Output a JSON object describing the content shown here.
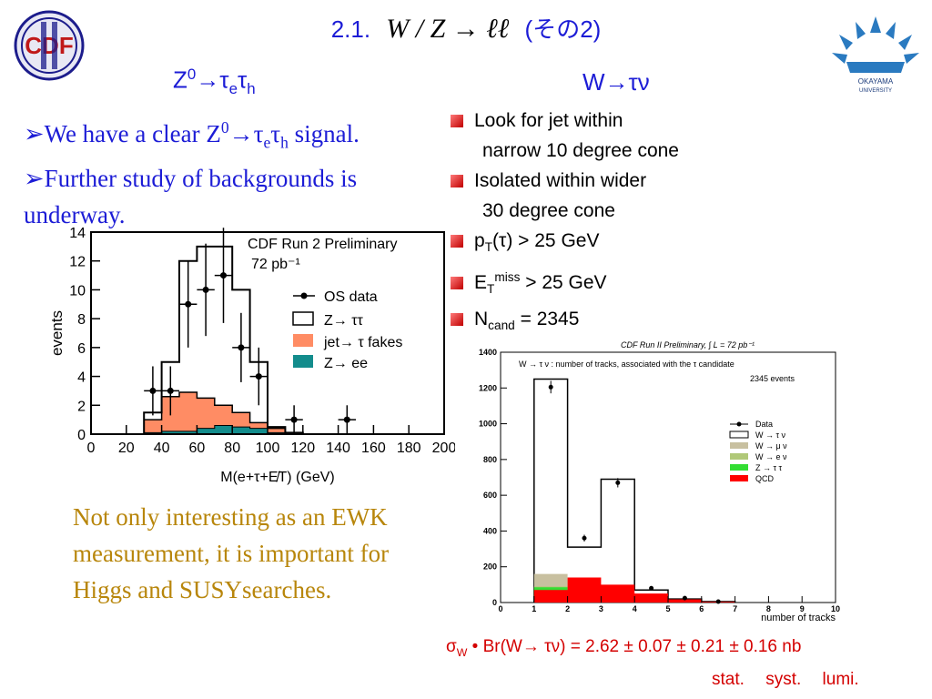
{
  "slide": {
    "title_num": "2.1.",
    "title_formula": "W / Z → ℓℓ",
    "title_suffix": "(その2)",
    "colors": {
      "title_blue": "#1c1cd6",
      "tan_text": "#b8860b",
      "bullet_red": "#c00000"
    }
  },
  "left": {
    "heading": {
      "base": "Z",
      "sup": "0",
      "arrow": "→τ",
      "sub1": "e",
      "tau": "τ",
      "sub2": "h"
    },
    "bullets": [
      {
        "pre": "We have a clear Z",
        "sup": "0",
        "mid": "→τ",
        "sub1": "e",
        "tau": "τ",
        "sub2": "h",
        "post": " signal."
      },
      {
        "text": "Further study of backgrounds is underway."
      }
    ],
    "note": "Not only interesting as an EWK measurement, it is important for Higgs and SUSYsearches."
  },
  "right": {
    "heading": "W→τν",
    "bullets": [
      {
        "line1": "Look for jet within",
        "line2": "narrow 10 degree cone"
      },
      {
        "line1": "Isolated within wider",
        "line2": "30 degree cone"
      },
      {
        "main": "p",
        "sub": "T",
        "rest": "(τ) > 25 GeV"
      },
      {
        "main": "E",
        "sub": "T",
        "sup": "miss",
        "rest": " > 25 GeV"
      },
      {
        "main": "N",
        "sub": "cand",
        "rest": " = 2345"
      }
    ],
    "result": {
      "sigma": "σ",
      "sub": "W",
      "text": " • Br(W→ τν) = 2.62 ± 0.07 ± 0.21 ± 0.16 nb",
      "labels": [
        "stat.",
        "syst.",
        "lumi."
      ]
    }
  },
  "chart_data": [
    {
      "type": "bar",
      "title": "CDF Run 2 Preliminary",
      "lumi": "72 pb⁻¹",
      "xlabel": "M(e+τ+E̸T)  (GeV)",
      "ylabel": "events",
      "xlim": [
        0,
        200
      ],
      "ylim": [
        0,
        14
      ],
      "xticks": [
        0,
        20,
        40,
        60,
        80,
        100,
        120,
        140,
        160,
        180,
        200
      ],
      "yticks": [
        0,
        2,
        4,
        6,
        8,
        10,
        12,
        14
      ],
      "bin_edges": [
        30,
        40,
        50,
        60,
        70,
        80,
        90,
        100,
        110,
        120,
        130,
        140
      ],
      "series": [
        {
          "name": "Z→ ττ",
          "style": "outline",
          "color": "#000000",
          "values": [
            1.5,
            5.0,
            12.0,
            13.0,
            13.0,
            10.0,
            5.0,
            0.5,
            0.1,
            0.0,
            0.0
          ]
        },
        {
          "name": "jet→ τ fakes",
          "style": "fill",
          "color": "#ff8c64",
          "values": [
            1.0,
            2.6,
            2.9,
            2.5,
            2.0,
            1.5,
            0.8,
            0.4,
            0.1,
            0.0,
            0.0
          ]
        },
        {
          "name": "Z→ ee",
          "style": "fill",
          "color": "#138c8c",
          "values": [
            0.1,
            0.2,
            0.2,
            0.4,
            0.6,
            0.5,
            0.4,
            0.1,
            0.0,
            0.0,
            0.0
          ]
        }
      ],
      "points": {
        "name": "OS data",
        "x": [
          35,
          45,
          55,
          65,
          75,
          85,
          95,
          115,
          145
        ],
        "y": [
          3,
          3,
          9,
          10,
          11,
          6,
          4,
          1,
          1
        ],
        "err": [
          1.7,
          1.7,
          3.0,
          3.2,
          3.3,
          2.4,
          2.0,
          1.0,
          1.0
        ]
      },
      "legend": "top-right"
    },
    {
      "type": "bar",
      "header": "CDF Run II Preliminary,   ∫ L = 72 pb⁻¹",
      "title": "W → τ ν : number of tracks, associated with the τ candidate",
      "events": "2345 events",
      "xlabel": "number of tracks",
      "xlim": [
        0,
        10
      ],
      "ylim": [
        0,
        1400
      ],
      "xticks": [
        0,
        1,
        2,
        3,
        4,
        5,
        6,
        7,
        8,
        9,
        10
      ],
      "yticks": [
        0,
        200,
        400,
        600,
        800,
        1000,
        1200,
        1400
      ],
      "bin_edges": [
        1,
        2,
        3,
        4,
        5,
        6,
        7
      ],
      "series": [
        {
          "name": "W → τ ν",
          "color": "#ffffff",
          "values": [
            1250,
            310,
            690,
            70,
            20,
            5
          ]
        },
        {
          "name": "W → μ ν",
          "color": "#c8c0a0",
          "values": [
            160,
            15,
            10,
            5,
            2,
            0
          ]
        },
        {
          "name": "W → e ν",
          "color": "#b0c878",
          "values": [
            90,
            10,
            8,
            3,
            1,
            0
          ]
        },
        {
          "name": "Z → τ τ",
          "color": "#33dd33",
          "values": [
            85,
            8,
            5,
            2,
            1,
            0
          ]
        },
        {
          "name": "QCD",
          "color": "#ff0000",
          "values": [
            70,
            140,
            100,
            50,
            18,
            4
          ]
        }
      ],
      "points": {
        "name": "Data",
        "x": [
          1.5,
          2.5,
          3.5,
          4.5,
          5.5,
          6.5
        ],
        "y": [
          1205,
          360,
          670,
          80,
          25,
          5
        ],
        "err": [
          35,
          19,
          26,
          9,
          5,
          2
        ]
      },
      "legend": "right"
    }
  ]
}
